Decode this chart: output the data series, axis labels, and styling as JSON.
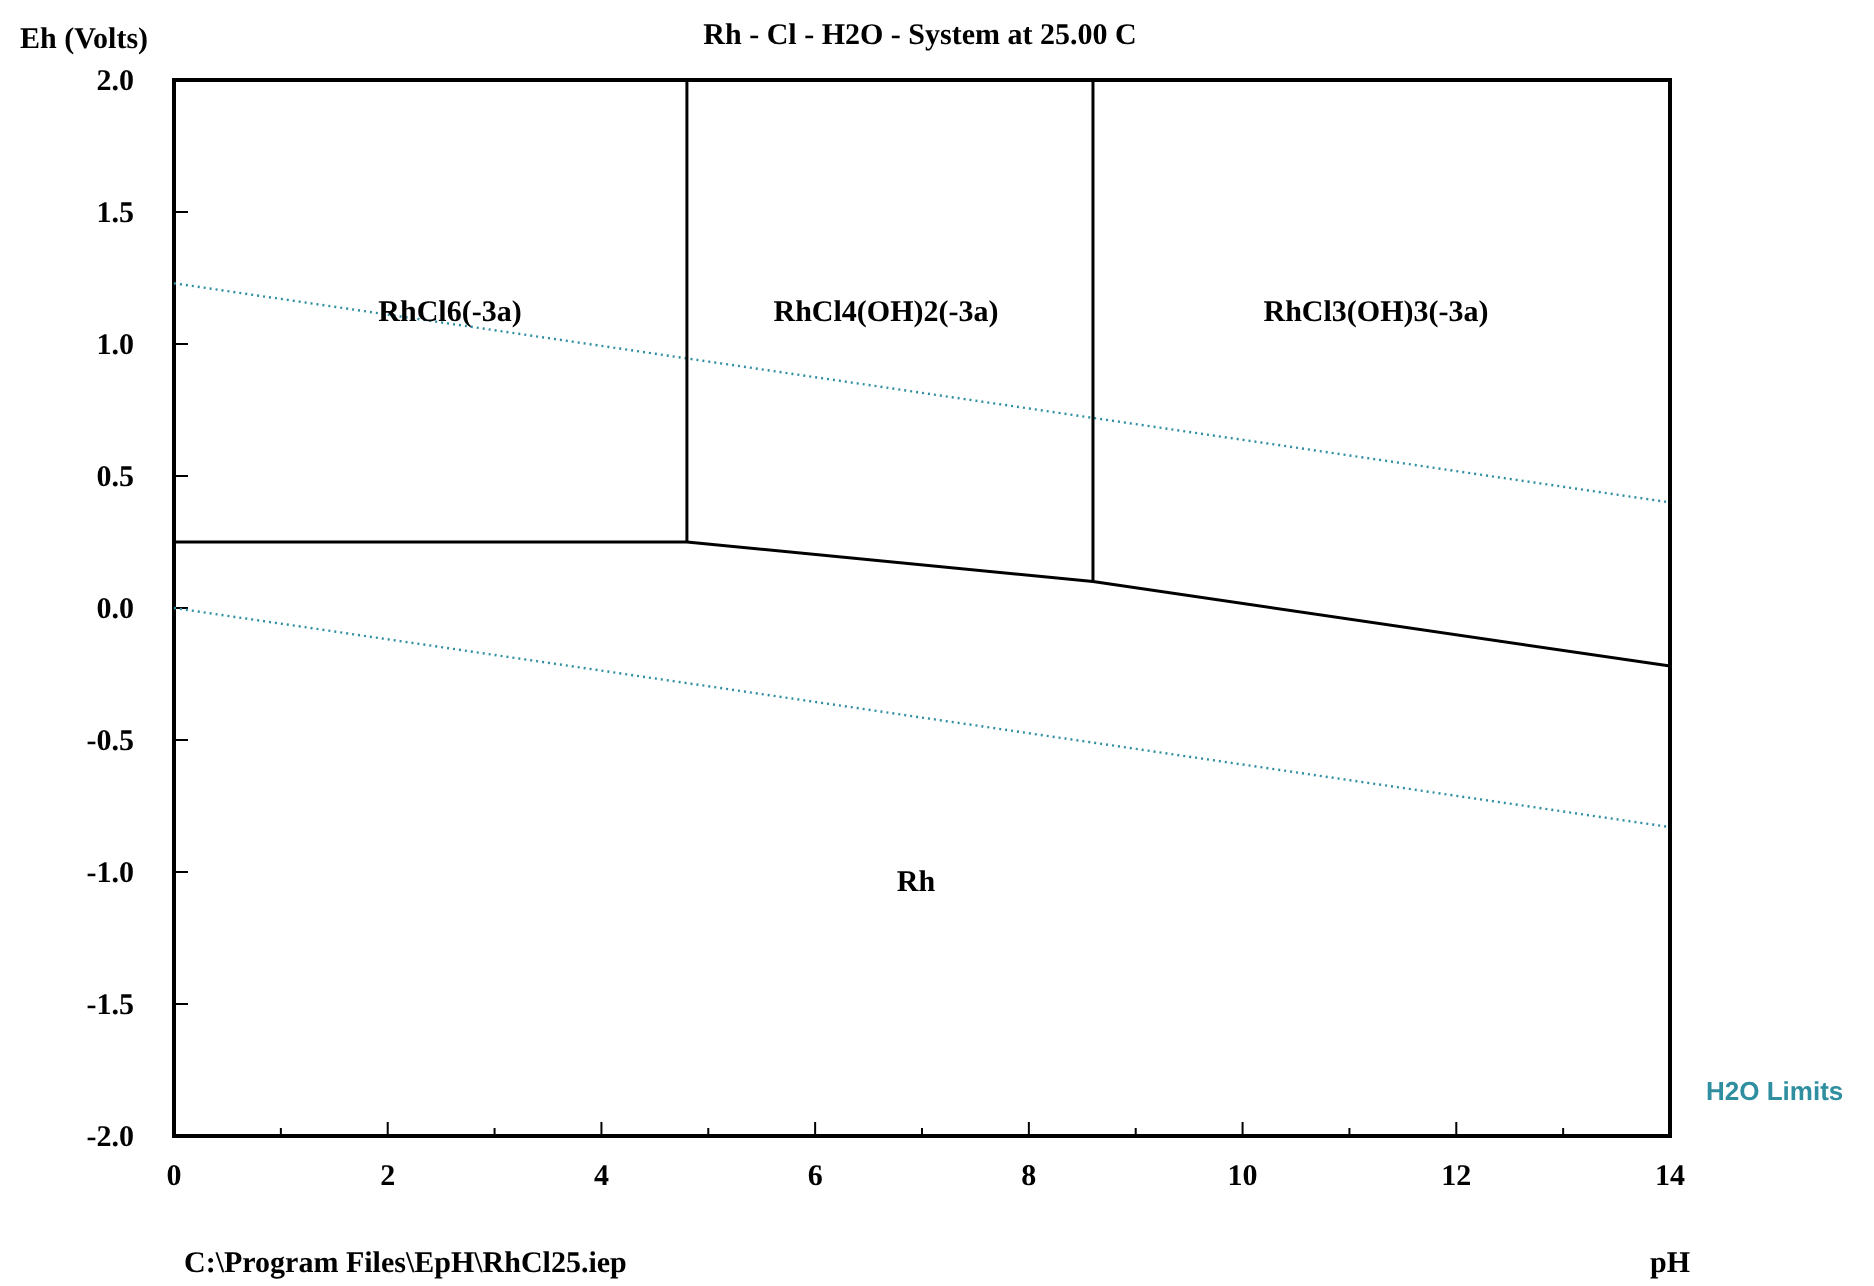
{
  "chart_data": {
    "type": "line",
    "title": "Rh - Cl - H2O - System at 25.00 C",
    "xlabel": "pH",
    "ylabel": "Eh (Volts)",
    "xlim": [
      0,
      14
    ],
    "ylim": [
      -2,
      2
    ],
    "xticks": [
      0,
      {
        "value": 1,
        "label": null
      },
      2,
      {
        "value": 3,
        "label": null
      },
      4,
      {
        "value": 5,
        "label": null
      },
      6,
      {
        "value": 7,
        "label": null
      },
      8,
      {
        "value": 9,
        "label": null
      },
      10,
      {
        "value": 11,
        "label": null
      },
      12,
      {
        "value": 13,
        "label": null
      },
      14
    ],
    "yticks": [
      {
        "value": -2,
        "label": "-2.0"
      },
      {
        "value": -1.5,
        "label": "-1.5"
      },
      {
        "value": -1,
        "label": "-1.0"
      },
      {
        "value": -0.5,
        "label": "-0.5"
      },
      {
        "value": 0,
        "label": "0.0"
      },
      {
        "value": 0.5,
        "label": "0.5"
      },
      {
        "value": 1,
        "label": "1.0"
      },
      {
        "value": 1.5,
        "label": "1.5"
      },
      {
        "value": 2,
        "label": "2.0"
      }
    ],
    "grid": false,
    "marker": "none",
    "legend": "bottom right",
    "series": [
      {
        "name": "H2O Limits",
        "color": "#2f8fa0",
        "line_style": "dotted",
        "x": [
          0,
          14
        ],
        "values": [
          1.23,
          0.4
        ]
      },
      {
        "color": "#2f8fa0",
        "line_style": "dotted",
        "x": [
          0,
          14
        ],
        "values": [
          0,
          -0.83
        ]
      },
      {
        "color": "#000000",
        "line_style": "solid",
        "x": [
          0,
          4.8,
          8.6,
          14
        ],
        "values": [
          0.25,
          0.25,
          0.1,
          -0.22
        ]
      },
      {
        "color": "#000000",
        "line_style": "solid",
        "x": [
          4.8,
          4.8
        ],
        "values": [
          0.25,
          2
        ]
      },
      {
        "color": "#000000",
        "line_style": "solid",
        "x": [
          8.6,
          8.6
        ],
        "values": [
          0.1,
          2
        ]
      }
    ],
    "annotations": [
      "RhCl6(-3a)",
      "RhCl4(OH)2(-3a)",
      "RhCl3(OH)3(-3a)",
      "Rh",
      "C:\\Program Files\\EpH\\RhCl25.iep"
    ]
  }
}
